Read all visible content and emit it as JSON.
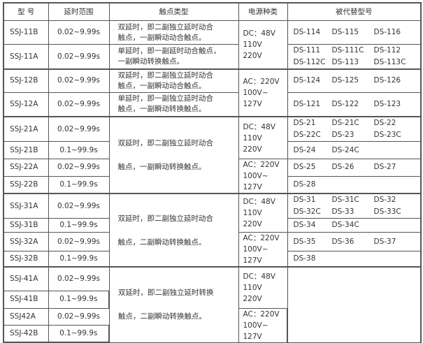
{
  "headers": [
    "型 号",
    "延时范围",
    "触点类型",
    "电源种类",
    "被代替型号"
  ],
  "rows": [
    {
      "model": "SSJ-11B",
      "delay": "0.02~9.99s",
      "contact": [
        "双延时，即二副独立延时动合",
        "触点，一副瞬动动合触点。"
      ],
      "power": [
        "DC：48V",
        "110V",
        "220V"
      ],
      "replaced": [
        [
          "DS-114",
          "DS-115",
          "DS-116"
        ]
      ]
    },
    {
      "model": "SSJ-11A",
      "delay": "0.02~9.99s",
      "contact": [
        "单延时，即一副延时动合触点，",
        "一副瞬动转换触点。"
      ],
      "replaced": [
        [
          "DS-111",
          "DS-111C",
          "DS-112"
        ],
        [
          "DS-112C",
          "DS-113",
          "DS-113C"
        ]
      ]
    },
    {
      "model": "SSJ-12B",
      "delay": "0.02~9.99s",
      "contact": [
        "双延时，即二副独立延时动合",
        "触点，一副瞬动动合触点。"
      ],
      "power": [
        "AC：220V",
        "100V~",
        "127V"
      ],
      "replaced": [
        [
          "DS-124",
          "DS-125",
          "DS-126"
        ]
      ]
    },
    {
      "model": "SSJ-12A",
      "delay": "0.02~9.99s",
      "contact": [
        "单延时，即一副独立延时动合",
        "触点，一副瞬动转换触点。"
      ],
      "replaced": [
        [
          "DS-121",
          "DS-122",
          "DS-123"
        ]
      ]
    },
    {
      "model": "SSJ-21A",
      "delay": "0.02~9.99s",
      "contact": [
        "双延时，即二副独立延时动合",
        "触点，一副瞬动转换触点。"
      ],
      "power": [
        "DC：48V",
        "110V",
        "220V"
      ],
      "replaced": [
        [
          "DS-21",
          "DS-21C",
          "DS-22"
        ],
        [
          "DS-22C",
          "DS-23",
          "DS-23C"
        ]
      ]
    },
    {
      "model": "SSJ-21B",
      "delay": "0.1~99.9s",
      "replaced": [
        [
          "DS-24",
          "DS-24C"
        ]
      ]
    },
    {
      "model": "SSJ-22A",
      "delay": "0.02~9.99s",
      "power": [
        "AC：220V",
        "100V~",
        "127V"
      ],
      "replaced": [
        [
          "DS-25",
          "DS-26",
          "DS-27"
        ]
      ]
    },
    {
      "model": "SSJ-22B",
      "delay": "0.1~99.9s",
      "replaced": [
        [
          "DS-28"
        ]
      ]
    },
    {
      "model": "SSJ-31A",
      "delay": "0.02~9.99s",
      "contact": [
        "双延时，即二副独立延时动合",
        "触点，二副瞬动转换触点。"
      ],
      "power": [
        "DC：48V",
        "110V",
        "220V"
      ],
      "replaced": [
        [
          "DS-31",
          "DS-31C",
          "DS-32"
        ],
        [
          "DS-32C",
          "DS-33",
          "DS-33C"
        ]
      ]
    },
    {
      "model": "SSJ-31B",
      "delay": "0.1~99.9s",
      "replaced": [
        [
          "DS-34",
          "DS-34C"
        ]
      ]
    },
    {
      "model": "SSJ-32A",
      "delay": "0.02~9.99s",
      "power": [
        "AC：220V",
        "100V~",
        "127V"
      ],
      "replaced": [
        [
          "DS-35",
          "DS-36",
          "DS-37"
        ]
      ]
    },
    {
      "model": "SSJ-32B",
      "delay": "0.1~99.9s",
      "replaced": [
        [
          "DS-38"
        ]
      ]
    },
    {
      "model": "SSJ-41A",
      "delay": "0.02~9.99s",
      "contact": [
        "双延时，即二副独立延时转换",
        "触点，二副瞬动转换触点。"
      ],
      "power": [
        "DC：48V",
        "110V",
        "220V"
      ],
      "replaced": []
    },
    {
      "model": "SSJ-41B",
      "delay": "0.1~99.9s"
    },
    {
      "model": "SSJ42A",
      "delay": "0.02~9.99s",
      "power": [
        "AC：220V",
        "100V~",
        "127V"
      ]
    },
    {
      "model": "SSJ-42B",
      "delay": "0.1~99.9s"
    }
  ]
}
